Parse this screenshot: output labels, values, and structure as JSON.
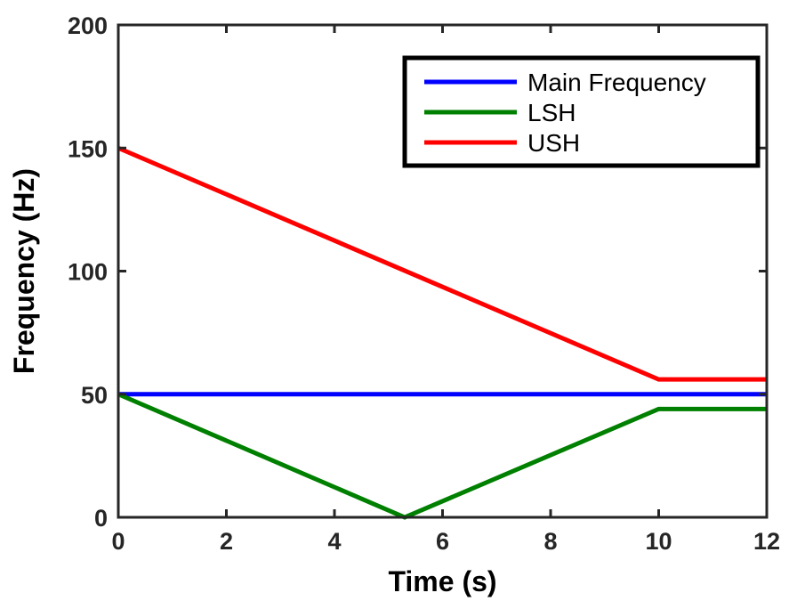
{
  "chart_data": {
    "type": "line",
    "title": "",
    "xlabel": "Time (s)",
    "ylabel": "Frequency (Hz)",
    "xlim": [
      0,
      12
    ],
    "ylim": [
      0,
      200
    ],
    "xticks": [
      0,
      2,
      4,
      6,
      8,
      10,
      12
    ],
    "yticks": [
      0,
      50,
      100,
      150,
      200
    ],
    "xtick_labels": [
      "0",
      "2",
      "4",
      "6",
      "8",
      "10",
      "12"
    ],
    "ytick_labels": [
      "0",
      "50",
      "100",
      "150",
      "200"
    ],
    "grid": false,
    "legend_position": "top-right",
    "series": [
      {
        "name": "Main Frequency",
        "color": "#0000ff",
        "x": [
          0,
          12
        ],
        "y": [
          50,
          50
        ]
      },
      {
        "name": "LSH",
        "color": "#008000",
        "x": [
          0,
          5.3,
          10,
          12
        ],
        "y": [
          50,
          0,
          44,
          44
        ]
      },
      {
        "name": "USH",
        "color": "#ff0000",
        "x": [
          0,
          10,
          12
        ],
        "y": [
          150,
          56,
          56
        ]
      }
    ]
  }
}
